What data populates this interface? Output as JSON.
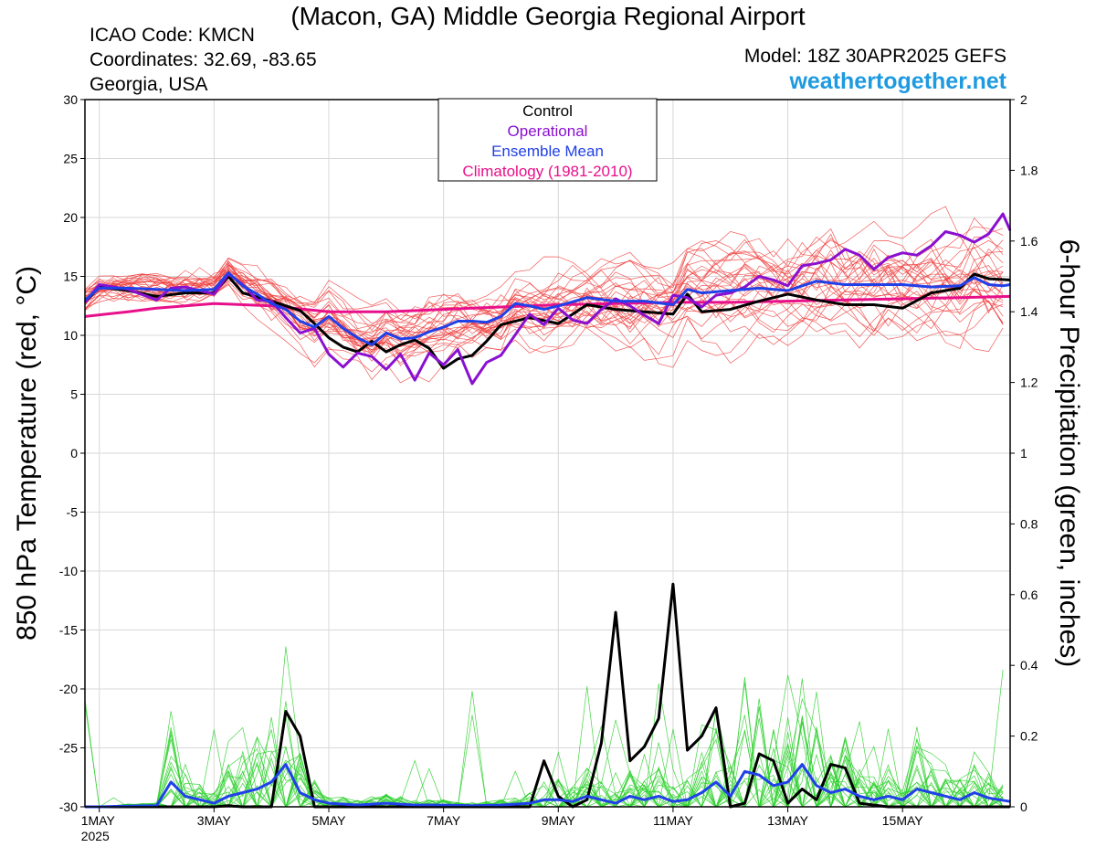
{
  "header": {
    "title": "(Macon, GA) Middle Georgia Regional Airport",
    "icao": "ICAO Code: KMCN",
    "coordinates": "Coordinates: 32.69, -83.65",
    "region": "Georgia, USA",
    "model": "Model: 18Z 30APR2025 GEFS",
    "site": "weathertogether.net"
  },
  "legend": {
    "items": [
      {
        "label": "Control",
        "color": "#000000"
      },
      {
        "label": "Operational",
        "color": "#8a10d0"
      },
      {
        "label": "Ensemble Mean",
        "color": "#2040e8"
      },
      {
        "label": "Climatology (1981-2010)",
        "color": "#e8108a"
      }
    ]
  },
  "colors": {
    "members_temp": "#f04040",
    "members_precip": "#30d030",
    "control": "#000000",
    "operational": "#8a10d0",
    "mean": "#2040e8",
    "climatology": "#e8108a",
    "site_link": "#1e9ae0"
  },
  "chart_data": {
    "type": "line",
    "title": "(Macon, GA) Middle Georgia Regional Airport",
    "ylabel": "850 hPa Temperature (red, °C)",
    "y2label": "6-hour Precipitation (green, inches)",
    "ylim": [
      -30,
      30
    ],
    "y2lim": [
      0,
      2
    ],
    "yticks": [
      -30,
      -25,
      -20,
      -15,
      -10,
      -5,
      0,
      5,
      10,
      15,
      20,
      25,
      30
    ],
    "y2ticks": [
      0,
      0.2,
      0.4,
      0.6,
      0.8,
      1,
      1.2,
      1.4,
      1.6,
      1.8,
      2
    ],
    "x_unit": "days since 1MAY2025 00Z",
    "xlim": [
      -0.25,
      15.875
    ],
    "xticks": [
      {
        "day": 0,
        "label": "1MAY",
        "sub": "2025"
      },
      {
        "day": 2,
        "label": "3MAY"
      },
      {
        "day": 4,
        "label": "5MAY"
      },
      {
        "day": 6,
        "label": "7MAY"
      },
      {
        "day": 8,
        "label": "9MAY"
      },
      {
        "day": 10,
        "label": "11MAY"
      },
      {
        "day": 12,
        "label": "13MAY"
      },
      {
        "day": 14,
        "label": "15MAY"
      }
    ],
    "grid": true,
    "legend_position": "top-center",
    "series": [
      {
        "name": "Climatology (1981-2010)",
        "axis": "temp",
        "x": [
          -0.25,
          0.5,
          1,
          1.5,
          2,
          3,
          4,
          5,
          6,
          7,
          8,
          9,
          10,
          11,
          12,
          13,
          14,
          15,
          15.875
        ],
        "values": [
          11.6,
          12.0,
          12.3,
          12.5,
          12.7,
          12.5,
          12.0,
          12.0,
          12.2,
          12.4,
          12.6,
          12.7,
          12.8,
          12.8,
          12.9,
          13.0,
          13.1,
          13.2,
          13.3
        ]
      },
      {
        "name": "Control",
        "axis": "temp",
        "x": [
          -0.25,
          0,
          0.5,
          1,
          1.5,
          2,
          2.25,
          2.5,
          3,
          3.5,
          3.75,
          4,
          4.25,
          4.5,
          4.75,
          5,
          5.25,
          5.5,
          5.75,
          6,
          6.25,
          6.5,
          6.75,
          7,
          7.5,
          8,
          8.5,
          9,
          9.5,
          10,
          10.25,
          10.5,
          11,
          11.5,
          12,
          12.5,
          13,
          13.5,
          14,
          14.5,
          15,
          15.25,
          15.5,
          15.875
        ],
        "values": [
          12.8,
          14.1,
          13.8,
          13.3,
          13.6,
          13.6,
          15.0,
          13.6,
          12.9,
          12.1,
          11.0,
          9.8,
          9.0,
          8.6,
          9.5,
          8.6,
          9.2,
          9.6,
          8.9,
          7.2,
          8.0,
          8.3,
          9.5,
          10.9,
          11.5,
          11.0,
          12.6,
          12.2,
          12.0,
          11.8,
          13.5,
          12.0,
          12.2,
          12.9,
          13.5,
          13.0,
          12.6,
          12.6,
          12.3,
          13.6,
          14.0,
          15.2,
          14.8,
          14.7
        ]
      },
      {
        "name": "Operational",
        "axis": "temp",
        "x": [
          -0.25,
          0,
          0.5,
          1,
          1.25,
          1.5,
          2,
          2.25,
          2.5,
          2.75,
          3,
          3.25,
          3.5,
          3.75,
          4,
          4.25,
          4.5,
          4.75,
          5,
          5.25,
          5.5,
          5.75,
          6,
          6.25,
          6.5,
          6.75,
          7,
          7.5,
          7.75,
          8,
          8.25,
          8.5,
          8.75,
          9,
          9.25,
          9.5,
          9.75,
          10,
          10.25,
          10.5,
          10.75,
          11,
          11.25,
          11.5,
          11.75,
          12,
          12.25,
          12.5,
          12.75,
          13,
          13.25,
          13.5,
          13.75,
          14,
          14.25,
          14.5,
          14.75,
          15,
          15.25,
          15.5,
          15.75,
          15.875
        ],
        "values": [
          12.8,
          14.3,
          13.9,
          13.0,
          14.0,
          14.1,
          13.5,
          15.2,
          14.3,
          13.0,
          12.9,
          11.5,
          10.2,
          10.6,
          8.4,
          7.3,
          8.5,
          8.2,
          7.1,
          8.4,
          6.2,
          8.5,
          7.5,
          8.8,
          5.9,
          7.7,
          8.3,
          11.8,
          10.9,
          12.3,
          11.3,
          11.0,
          12.2,
          13.1,
          12.5,
          11.7,
          11.0,
          13.4,
          13.2,
          12.4,
          13.4,
          13.6,
          14.1,
          15.0,
          14.7,
          14.2,
          15.9,
          16.1,
          16.4,
          17.3,
          16.8,
          15.6,
          16.6,
          17.0,
          16.8,
          17.6,
          18.8,
          18.5,
          17.9,
          18.6,
          20.3,
          18.9
        ]
      },
      {
        "name": "Ensemble Mean",
        "axis": "temp",
        "x": [
          -0.25,
          0,
          0.5,
          1,
          1.5,
          2,
          2.25,
          2.5,
          2.75,
          3,
          3.25,
          3.5,
          3.75,
          4,
          4.25,
          4.5,
          4.75,
          5,
          5.25,
          5.5,
          5.75,
          6,
          6.25,
          6.5,
          6.75,
          7,
          7.25,
          7.5,
          7.75,
          8,
          8.5,
          9,
          9.5,
          10,
          10.25,
          10.5,
          11,
          11.5,
          12,
          12.5,
          13,
          13.5,
          14,
          14.5,
          15,
          15.25,
          15.5,
          15.75,
          15.875
        ],
        "values": [
          13.0,
          14.0,
          14.0,
          13.9,
          13.8,
          13.9,
          15.3,
          14.2,
          13.5,
          12.7,
          12.2,
          11.2,
          10.7,
          11.6,
          10.6,
          9.8,
          9.2,
          10.2,
          9.7,
          9.8,
          10.3,
          10.7,
          11.2,
          11.2,
          11.1,
          11.6,
          12.7,
          12.5,
          12.2,
          12.5,
          13.2,
          12.9,
          12.9,
          12.6,
          13.9,
          13.6,
          13.8,
          14.0,
          13.8,
          14.6,
          14.3,
          14.3,
          14.3,
          14.1,
          14.2,
          14.9,
          14.3,
          14.2,
          14.3
        ]
      },
      {
        "name": "Control",
        "axis": "precip",
        "x": [
          -0.25,
          0,
          0.5,
          1,
          1.25,
          1.5,
          2,
          2.25,
          2.5,
          2.75,
          3,
          3.25,
          3.5,
          3.75,
          4,
          4.5,
          5,
          5.5,
          6,
          6.5,
          7,
          7.5,
          7.75,
          8,
          8.25,
          8.5,
          8.75,
          9,
          9.25,
          9.5,
          9.75,
          10,
          10.25,
          10.5,
          10.75,
          11,
          11.25,
          11.5,
          11.75,
          12,
          12.25,
          12.5,
          12.75,
          13,
          13.25,
          13.5,
          13.75,
          14,
          14.25,
          14.5,
          14.75,
          15,
          15.25,
          15.5,
          15.875
        ],
        "values": [
          0,
          0,
          0,
          0,
          0,
          0,
          0,
          0.003,
          0,
          0,
          0,
          0.27,
          0.2,
          0,
          0,
          0,
          0,
          0,
          0,
          0,
          0,
          0,
          0.13,
          0.03,
          0,
          0.02,
          0.18,
          0.55,
          0.13,
          0.17,
          0.25,
          0.63,
          0.16,
          0.2,
          0.28,
          0,
          0.01,
          0.15,
          0.13,
          0.01,
          0.05,
          0.02,
          0.12,
          0.11,
          0.01,
          0.005,
          0,
          0,
          0,
          0,
          0,
          0,
          0,
          0,
          0
        ]
      },
      {
        "name": "Ensemble Mean",
        "axis": "precip",
        "x": [
          -0.25,
          0,
          0.5,
          1,
          1.25,
          1.5,
          2,
          2.25,
          2.5,
          2.75,
          3,
          3.25,
          3.5,
          3.75,
          4,
          4.5,
          5,
          5.5,
          6,
          6.5,
          7,
          7.5,
          7.75,
          8,
          8.25,
          8.5,
          8.75,
          9,
          9.25,
          9.5,
          9.75,
          10,
          10.25,
          10.5,
          10.75,
          11,
          11.25,
          11.5,
          11.75,
          12,
          12.25,
          12.5,
          12.75,
          13,
          13.25,
          13.5,
          13.75,
          14,
          14.25,
          14.5,
          14.75,
          15,
          15.25,
          15.5,
          15.875
        ],
        "values": [
          0,
          0,
          0.002,
          0.003,
          0.07,
          0.03,
          0.01,
          0.03,
          0.04,
          0.05,
          0.07,
          0.12,
          0.04,
          0.02,
          0.01,
          0.005,
          0.01,
          0.005,
          0.005,
          0.003,
          0.005,
          0.01,
          0.02,
          0.02,
          0.015,
          0.03,
          0.02,
          0.01,
          0.03,
          0.02,
          0.03,
          0.015,
          0.02,
          0.04,
          0.07,
          0.03,
          0.1,
          0.09,
          0.06,
          0.07,
          0.12,
          0.06,
          0.04,
          0.05,
          0.03,
          0.02,
          0.03,
          0.02,
          0.05,
          0.04,
          0.03,
          0.02,
          0.04,
          0.025,
          0.015
        ]
      }
    ]
  }
}
